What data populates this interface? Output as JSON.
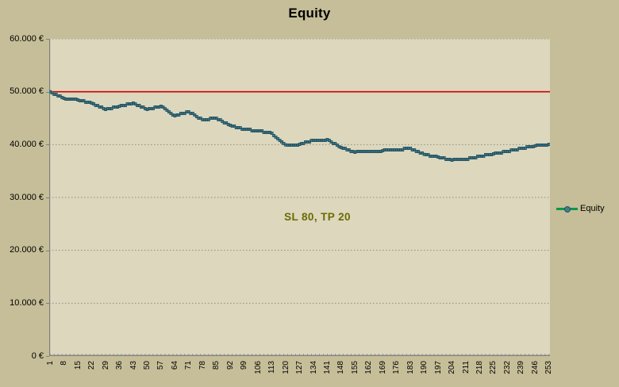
{
  "title": "Equity",
  "legend": {
    "label": "Equity"
  },
  "annotation": {
    "text": "SL 80, TP 20"
  },
  "colors": {
    "outer_background": "#c6be98",
    "plot_background": "#dcd7bd",
    "gridline": "#8f8f85",
    "axis": "#808080",
    "reference_line": "#cc0000",
    "series_line": "#0c9747",
    "marker_fill": "#40808f",
    "marker_stroke": "#27505e",
    "annotation_text": "#6b6b00",
    "title_text": "#000000"
  },
  "chart_data": {
    "type": "line",
    "title": "Equity",
    "xlabel": "",
    "ylabel": "",
    "x_range": [
      1,
      253
    ],
    "n_points": 253,
    "x_tick_step": 7,
    "x_tick_labels": [
      1,
      8,
      15,
      22,
      29,
      36,
      43,
      50,
      57,
      64,
      71,
      78,
      85,
      92,
      99,
      106,
      113,
      120,
      127,
      134,
      141,
      148,
      155,
      162,
      169,
      176,
      183,
      190,
      197,
      204,
      211,
      218,
      225,
      232,
      239,
      246,
      253
    ],
    "ylim": [
      0,
      60000
    ],
    "y_tick_interval": 10000,
    "y_tick_labels_top_to_bottom": [
      "60.000 €",
      "50.000 €",
      "40.000 €",
      "30.000 €",
      "20.000 €",
      "10.000 €",
      "0 €"
    ],
    "grid": "horizontal-dotted",
    "legend_position": "right",
    "legend_entries": [
      "Equity"
    ],
    "reference_line": {
      "value": 50000,
      "color": "#cc0000"
    },
    "annotation": {
      "text": "SL 80, TP 20",
      "approx_x": 134,
      "approx_y": 27000
    },
    "series": [
      {
        "name": "Equity",
        "x": [
          1,
          8,
          15,
          22,
          29,
          36,
          43,
          50,
          57,
          64,
          71,
          78,
          85,
          92,
          99,
          106,
          113,
          120,
          127,
          134,
          141,
          148,
          155,
          162,
          169,
          176,
          183,
          190,
          197,
          204,
          211,
          218,
          225,
          232,
          239,
          246,
          253
        ],
        "values": [
          50000,
          48750,
          48450,
          47850,
          46650,
          47250,
          47850,
          46650,
          47250,
          45450,
          46200,
          44700,
          45000,
          43650,
          42900,
          42600,
          42150,
          39950,
          40050,
          40800,
          40950,
          39450,
          38550,
          38700,
          38850,
          39000,
          39300,
          38150,
          37650,
          37050,
          37200,
          37800,
          38250,
          38700,
          39300,
          39750,
          40050
        ]
      }
    ]
  }
}
